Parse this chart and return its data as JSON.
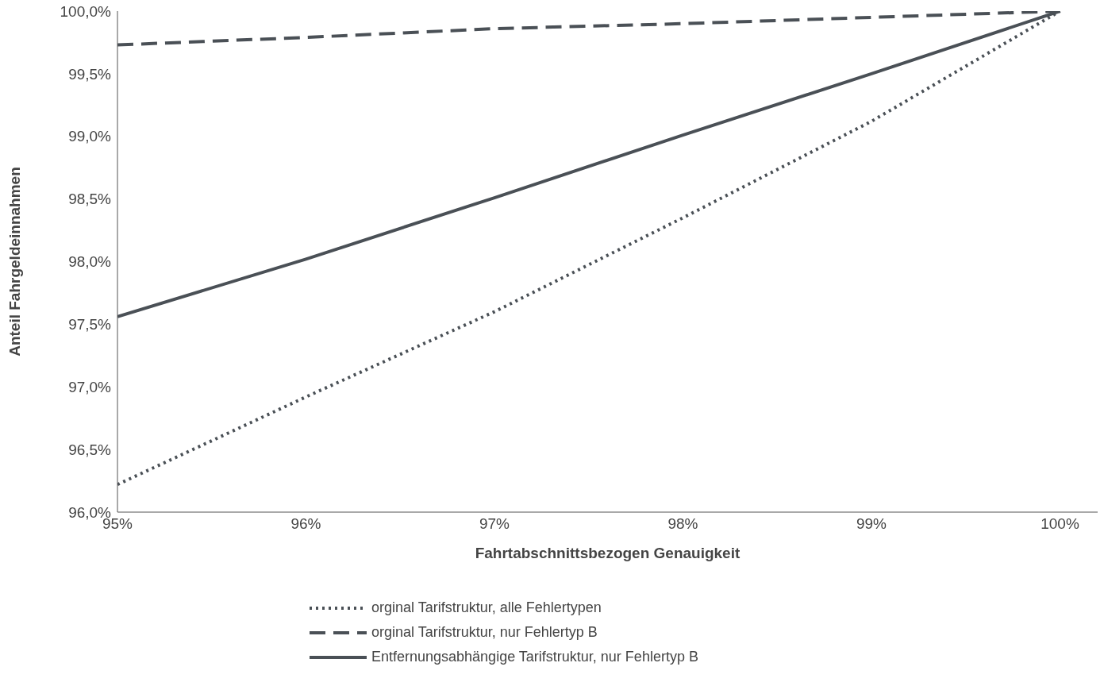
{
  "chart_data": {
    "type": "line",
    "xlabel": "Fahrtabschnittsbezogen Genauigkeit",
    "ylabel": "Anteil Fahrgeldeinnahmen",
    "x": [
      95,
      96,
      97,
      98,
      99,
      100
    ],
    "series": [
      {
        "name": "orginal Tarifstruktur, alle Fehlertypen",
        "color": "#4a5056",
        "line_style": "dotted",
        "values": [
          96.22,
          96.92,
          97.6,
          98.35,
          99.12,
          100
        ]
      },
      {
        "name": "orginal Tarifstruktur, nur Fehlertyp B",
        "color": "#4a5056",
        "line_style": "dashed",
        "values": [
          99.73,
          99.79,
          99.86,
          99.9,
          99.95,
          100
        ]
      },
      {
        "name": "Entfernungsabhängige Tarifstruktur, nur Fehlertyp B",
        "color": "#4a5056",
        "line_style": "solid",
        "values": [
          97.56,
          98.02,
          98.51,
          99.01,
          99.5,
          100
        ]
      }
    ],
    "xlim": [
      95,
      100.2
    ],
    "xticks": [
      {
        "value": 95,
        "label": "95%"
      },
      {
        "value": 96,
        "label": "96%"
      },
      {
        "value": 97,
        "label": "97%"
      },
      {
        "value": 98,
        "label": "98%"
      },
      {
        "value": 99,
        "label": "99%"
      },
      {
        "value": 100,
        "label": "100%"
      }
    ],
    "ylim": [
      96,
      100
    ],
    "yticks": [
      {
        "value": 96,
        "label": "96,0%"
      },
      {
        "value": 96.5,
        "label": "96,5%"
      },
      {
        "value": 97,
        "label": "97,0%"
      },
      {
        "value": 97.5,
        "label": "97,5%"
      },
      {
        "value": 98,
        "label": "98,0%"
      },
      {
        "value": 98.5,
        "label": "98,5%"
      },
      {
        "value": 99,
        "label": "99,0%"
      },
      {
        "value": 99.5,
        "label": "99,5%"
      },
      {
        "value": 100,
        "label": "100,0%"
      }
    ],
    "grid": false,
    "legend": "bottom",
    "marker": "none"
  }
}
